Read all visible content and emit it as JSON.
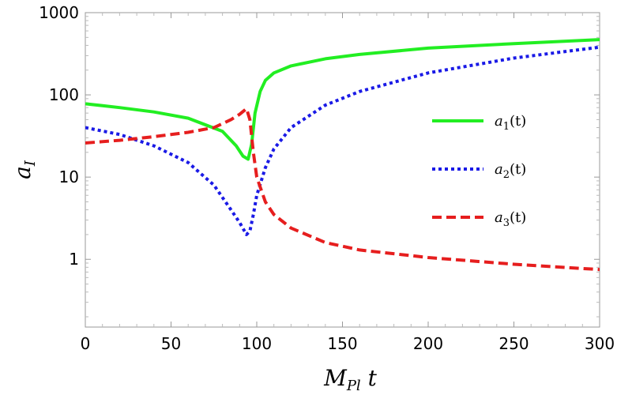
{
  "chart_data": {
    "type": "line",
    "title": "",
    "xlabel": "M_Pl t",
    "xlabel_parts": {
      "main": "M",
      "sub": "Pl",
      "tail": " t"
    },
    "ylabel": "a_I",
    "ylabel_parts": {
      "main": "a",
      "sub": "I"
    },
    "xlim": [
      0,
      300
    ],
    "ylim": [
      0.15,
      1000
    ],
    "yscale": "log",
    "grid": false,
    "legend_position": "right",
    "x_ticks": [
      0,
      50,
      100,
      150,
      200,
      250,
      300
    ],
    "y_ticks": [
      1,
      10,
      100,
      1000
    ],
    "y_minor_ticks": [
      0.2,
      0.3,
      0.4,
      0.5,
      0.6,
      0.7,
      0.8,
      0.9,
      2,
      3,
      4,
      5,
      6,
      7,
      8,
      9,
      20,
      30,
      40,
      50,
      60,
      70,
      80,
      90,
      200,
      300,
      400,
      500,
      600,
      700,
      800,
      900
    ],
    "series": [
      {
        "name": "a1(t)",
        "label_main": "a",
        "label_sub": "1",
        "label_tail": "(t)",
        "color": "#22ee22",
        "dash": "solid",
        "x": [
          0,
          20,
          40,
          60,
          80,
          88,
          92,
          95,
          97,
          99,
          102,
          105,
          110,
          120,
          140,
          160,
          200,
          250,
          300
        ],
        "y": [
          78,
          70,
          62,
          52,
          36,
          24,
          18,
          16.5,
          25,
          60,
          110,
          150,
          185,
          225,
          275,
          310,
          370,
          420,
          470
        ]
      },
      {
        "name": "a2(t)",
        "label_main": "a",
        "label_sub": "2",
        "label_tail": "(t)",
        "color": "#1a1ae6",
        "dash": "dotted",
        "x": [
          0,
          20,
          40,
          60,
          75,
          85,
          90,
          94,
          96,
          98,
          100,
          105,
          110,
          120,
          140,
          160,
          200,
          250,
          300
        ],
        "y": [
          40,
          33,
          24,
          15,
          8,
          4,
          2.8,
          2,
          2.2,
          3.5,
          6,
          13,
          22,
          40,
          75,
          110,
          185,
          280,
          380
        ]
      },
      {
        "name": "a3(t)",
        "label_main": "a",
        "label_sub": "3",
        "label_tail": "(t)",
        "color": "#e61e1e",
        "dash": "dashed",
        "x": [
          0,
          20,
          40,
          60,
          75,
          85,
          90,
          94,
          96,
          98,
          100,
          105,
          110,
          120,
          140,
          160,
          200,
          250,
          300
        ],
        "y": [
          26,
          28,
          31,
          35,
          40,
          50,
          58,
          68,
          50,
          20,
          10,
          5,
          3.5,
          2.4,
          1.6,
          1.3,
          1.05,
          0.87,
          0.75
        ]
      }
    ]
  }
}
